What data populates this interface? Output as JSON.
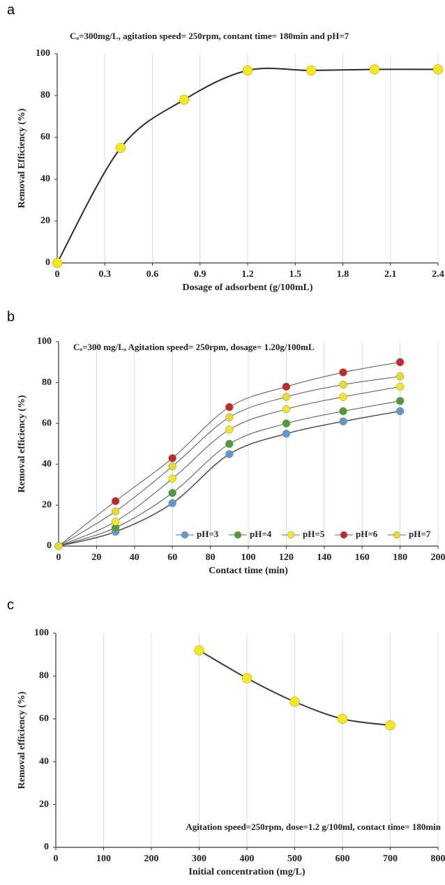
{
  "chart_data": [
    {
      "type": "line",
      "label": "a",
      "annotation": "Cₒ=300mg/L, agitation speed= 250rpm, contant time= 180min and pH=7",
      "x_label": "Dosage of adsorbent (g/100mL)",
      "y_label": "Removal Efficiency (%)",
      "x": [
        0,
        0.4,
        0.8,
        1.2,
        1.6,
        2.0,
        2.4
      ],
      "values": [
        0,
        55,
        78,
        92,
        92,
        92.5,
        92.5
      ],
      "color": "#f7e71f",
      "line_color": "#2b2b2b",
      "xlim": [
        0,
        2.4
      ],
      "xticks": [
        0,
        0.3,
        0.6,
        0.9,
        1.2,
        1.5,
        1.8,
        2.1,
        2.4
      ],
      "ylim": [
        0,
        100
      ],
      "yticks": [
        0,
        20,
        40,
        60,
        80,
        100
      ],
      "grid": "x"
    },
    {
      "type": "line",
      "label": "b",
      "annotation": "Cₒ=300 mg/L, Agitation speed= 250rpm, dosage= 1.20g/100mL",
      "x_label": "Contact time (min)",
      "y_label": "Removal efficiency (%)",
      "x": [
        0,
        30,
        60,
        90,
        120,
        150,
        180
      ],
      "line_color": "#555555",
      "series": [
        {
          "name": "pH=3",
          "color": "#5b9bd5",
          "values": [
            0,
            7,
            21,
            45,
            55,
            61,
            66
          ]
        },
        {
          "name": "pH=4",
          "color": "#4e9a4a",
          "values": [
            0,
            9,
            26,
            50,
            60,
            66,
            71
          ]
        },
        {
          "name": "pH=5",
          "color": "#f2e531",
          "values": [
            0,
            12,
            33,
            57,
            67,
            73,
            78
          ]
        },
        {
          "name": "pH=6",
          "color": "#c0273a",
          "values": [
            0,
            22,
            43,
            68,
            78,
            85,
            90
          ]
        },
        {
          "name": "pH=7",
          "color": "#e6d93a",
          "values": [
            0,
            17,
            39,
            63,
            73,
            79,
            83
          ]
        }
      ],
      "xlim": [
        0,
        200
      ],
      "xticks": [
        0,
        20,
        40,
        60,
        80,
        100,
        120,
        140,
        160,
        180,
        200
      ],
      "ylim": [
        0,
        100
      ],
      "yticks": [
        0,
        20,
        40,
        60,
        80,
        100
      ],
      "grid": "x",
      "legend": "bottom-right"
    },
    {
      "type": "line",
      "label": "c",
      "annotation": "Agitation speed=250rpm, dose=1.2 g/100ml, contact time= 180min",
      "x_label": "Initial concentration (mg/L)",
      "y_label": "Removal efficiency (%)",
      "x": [
        300,
        400,
        500,
        600,
        700
      ],
      "values": [
        92,
        79,
        68,
        60,
        57
      ],
      "color": "#f7e71f",
      "line_color": "#3a3a3a",
      "xlim": [
        0,
        800
      ],
      "xticks": [
        0,
        100,
        200,
        300,
        400,
        500,
        600,
        700,
        800
      ],
      "ylim": [
        0,
        100
      ],
      "yticks": [
        0,
        20,
        40,
        60,
        80,
        100
      ],
      "grid": "x"
    }
  ]
}
